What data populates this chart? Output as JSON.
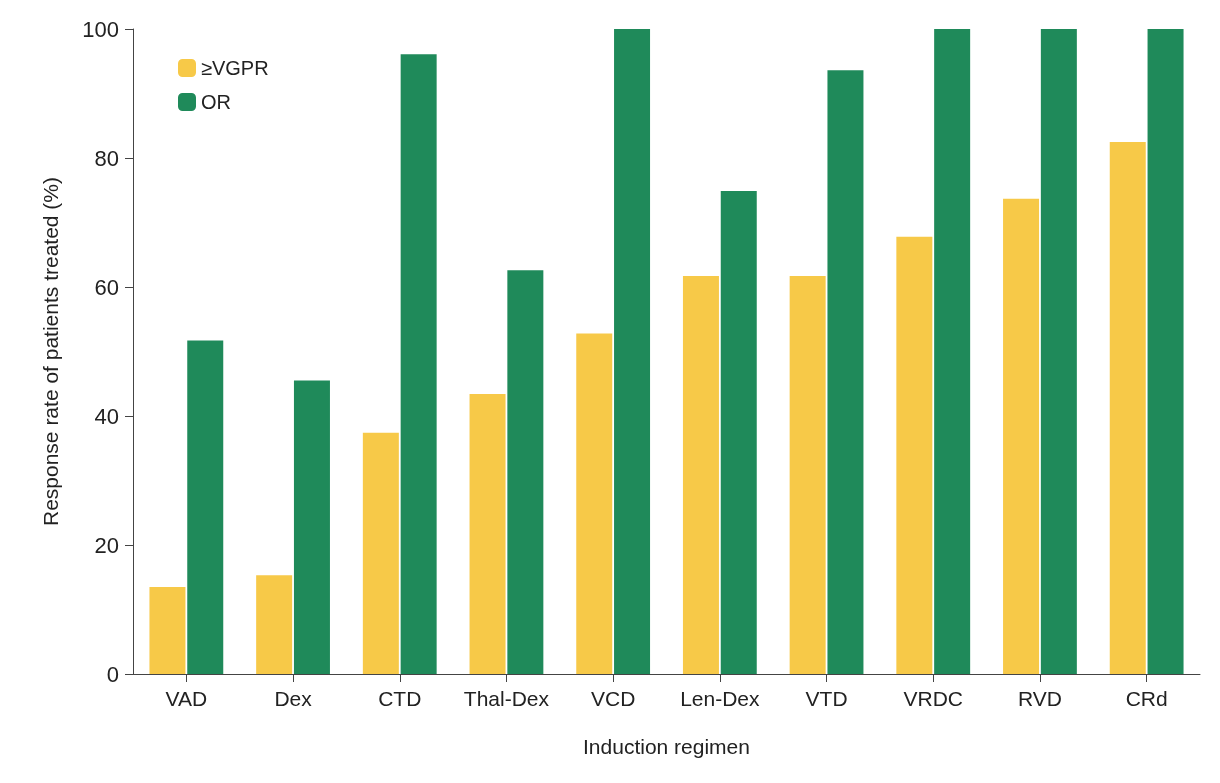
{
  "chart_data": {
    "type": "bar",
    "xlabel": "Induction regimen",
    "ylabel": "Response rate of patients treated (%)",
    "categories": [
      "VAD",
      "Dex",
      "CTD",
      "Thal-Dex",
      "VCD",
      "Len-Dex",
      "VTD",
      "VRDC",
      "RVD",
      "CRd"
    ],
    "series": [
      {
        "name": "≥VGPR",
        "color": "#f7c948",
        "values": [
          13.5,
          15.3,
          37.4,
          43.4,
          52.8,
          61.7,
          61.7,
          67.8,
          73.7,
          82.5
        ]
      },
      {
        "name": "OR",
        "color": "#1f8a5a",
        "values": [
          51.7,
          45.5,
          96.1,
          62.6,
          100,
          74.9,
          93.6,
          100,
          100,
          100
        ]
      }
    ],
    "ylim": [
      0,
      100
    ],
    "yticks": [
      0,
      20,
      40,
      60,
      80,
      100
    ],
    "grid": false,
    "legend": "top left"
  }
}
